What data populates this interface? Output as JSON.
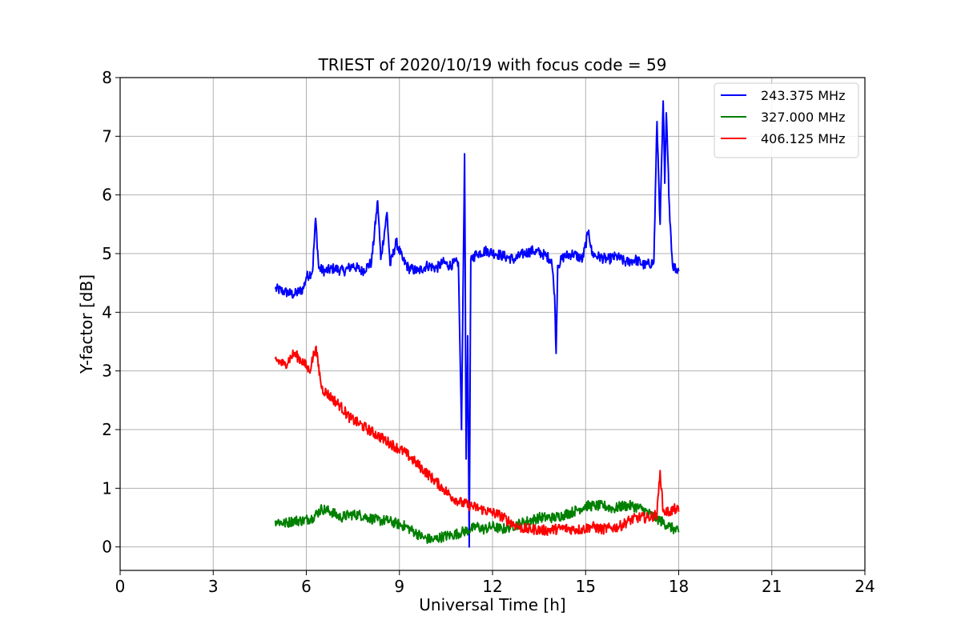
{
  "chart_data": {
    "type": "line",
    "title": "TRIEST of 2020/10/19 with focus code = 59",
    "xlabel": "Universal Time [h]",
    "ylabel": "Y-factor [dB]",
    "xlim": [
      0,
      24
    ],
    "ylim": [
      -0.4,
      8
    ],
    "xticks": [
      0,
      3,
      6,
      9,
      12,
      15,
      18,
      21,
      24
    ],
    "yticks": [
      0,
      1,
      2,
      3,
      4,
      5,
      6,
      7,
      8
    ],
    "grid": true,
    "legend_position": "top-right",
    "series": [
      {
        "name": "243.375 MHz",
        "color": "#0000ff",
        "x": [
          5.0,
          5.3,
          5.6,
          5.9,
          6.0,
          6.2,
          6.3,
          6.4,
          6.6,
          6.9,
          7.2,
          7.5,
          7.8,
          8.1,
          8.3,
          8.4,
          8.6,
          8.7,
          8.9,
          9.1,
          9.3,
          9.6,
          9.9,
          10.2,
          10.4,
          10.6,
          10.9,
          11.0,
          11.1,
          11.15,
          11.2,
          11.25,
          11.3,
          11.5,
          11.8,
          12.1,
          12.4,
          12.7,
          13.0,
          13.3,
          13.6,
          13.9,
          14.0,
          14.05,
          14.1,
          14.3,
          14.6,
          14.9,
          15.1,
          15.2,
          15.4,
          15.7,
          16.0,
          16.3,
          16.6,
          16.9,
          17.2,
          17.3,
          17.4,
          17.5,
          17.55,
          17.6,
          17.7,
          17.8,
          18.0
        ],
        "y": [
          4.4,
          4.35,
          4.3,
          4.4,
          4.6,
          4.7,
          5.6,
          4.75,
          4.7,
          4.75,
          4.7,
          4.8,
          4.7,
          4.85,
          5.9,
          4.9,
          5.7,
          4.8,
          5.2,
          4.9,
          4.75,
          4.7,
          4.8,
          4.75,
          4.85,
          4.8,
          4.85,
          2.0,
          6.7,
          1.5,
          3.6,
          0.0,
          4.9,
          5.0,
          5.05,
          5.0,
          4.95,
          4.9,
          5.0,
          5.05,
          5.0,
          4.9,
          4.3,
          3.3,
          4.8,
          4.95,
          5.0,
          4.9,
          5.4,
          5.0,
          4.95,
          4.9,
          4.95,
          4.85,
          4.9,
          4.8,
          4.85,
          7.25,
          5.5,
          7.6,
          6.2,
          7.4,
          5.8,
          4.8,
          4.7
        ]
      },
      {
        "name": "327.000 MHz",
        "color": "#008000",
        "x": [
          5.0,
          5.3,
          5.6,
          5.9,
          6.2,
          6.5,
          6.8,
          7.1,
          7.4,
          7.7,
          8.0,
          8.3,
          8.6,
          8.9,
          9.2,
          9.5,
          9.8,
          10.1,
          10.4,
          10.7,
          11.0,
          11.3,
          11.5,
          11.7,
          12.0,
          12.3,
          12.6,
          12.9,
          13.2,
          13.5,
          13.8,
          14.0,
          14.3,
          14.6,
          14.8,
          15.0,
          15.3,
          15.6,
          15.9,
          16.2,
          16.5,
          16.8,
          17.1,
          17.4,
          17.7,
          18.0
        ],
        "y": [
          0.45,
          0.4,
          0.45,
          0.45,
          0.5,
          0.65,
          0.6,
          0.5,
          0.55,
          0.55,
          0.5,
          0.45,
          0.45,
          0.4,
          0.35,
          0.25,
          0.15,
          0.12,
          0.18,
          0.2,
          0.25,
          0.3,
          0.35,
          0.3,
          0.35,
          0.3,
          0.35,
          0.4,
          0.45,
          0.5,
          0.5,
          0.5,
          0.55,
          0.6,
          0.65,
          0.7,
          0.7,
          0.7,
          0.65,
          0.7,
          0.7,
          0.65,
          0.55,
          0.45,
          0.35,
          0.25
        ]
      },
      {
        "name": "406.125 MHz",
        "color": "#ff0000",
        "x": [
          5.0,
          5.3,
          5.6,
          5.9,
          6.1,
          6.3,
          6.5,
          6.8,
          7.1,
          7.4,
          7.7,
          8.0,
          8.3,
          8.6,
          8.9,
          9.2,
          9.5,
          9.8,
          10.1,
          10.4,
          10.7,
          11.0,
          11.3,
          11.6,
          11.9,
          12.2,
          12.5,
          12.8,
          13.1,
          13.4,
          13.7,
          14.0,
          14.3,
          14.6,
          14.9,
          15.2,
          15.5,
          15.8,
          16.1,
          16.4,
          16.7,
          17.0,
          17.3,
          17.4,
          17.5,
          17.7,
          17.9,
          18.0
        ],
        "y": [
          3.2,
          3.1,
          3.3,
          3.15,
          3.0,
          3.4,
          2.7,
          2.55,
          2.4,
          2.2,
          2.1,
          2.0,
          1.9,
          1.8,
          1.7,
          1.6,
          1.45,
          1.3,
          1.15,
          1.0,
          0.85,
          0.75,
          0.7,
          0.65,
          0.6,
          0.55,
          0.45,
          0.35,
          0.3,
          0.3,
          0.28,
          0.3,
          0.32,
          0.3,
          0.3,
          0.35,
          0.3,
          0.32,
          0.35,
          0.45,
          0.5,
          0.5,
          0.55,
          1.3,
          0.6,
          0.6,
          0.65,
          0.6
        ]
      }
    ]
  }
}
